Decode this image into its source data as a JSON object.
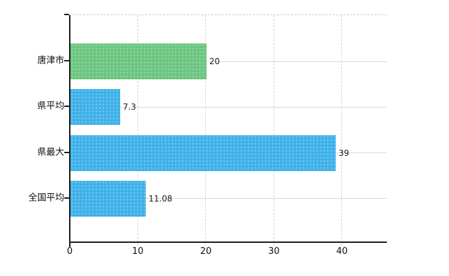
{
  "chart_data": {
    "type": "bar",
    "orientation": "horizontal",
    "title": "",
    "xlabel": "",
    "ylabel": "",
    "categories": [
      "唐津市",
      "県平均",
      "県最大",
      "全国平均"
    ],
    "values": [
      20,
      7.3,
      39,
      11.08
    ],
    "value_labels": [
      "20",
      "7.3",
      "39",
      "11.08"
    ],
    "bar_colors": [
      "#6cc581",
      "#3fb1e9",
      "#3fb1e9",
      "#3fb1e9"
    ],
    "x_ticks": [
      0,
      10,
      20,
      30,
      40
    ],
    "x_tick_labels": [
      "0",
      "10",
      "20",
      "30",
      "40"
    ],
    "xlim": [
      0,
      46.7
    ],
    "grid": true,
    "legend": "none",
    "plot_border_top": "dashed",
    "colors": {
      "axis": "#1b1b1b",
      "grid_vertical": "#d5d2d8",
      "grid_horizontal": "#d6dad6",
      "background": "#ffffff",
      "text": "#101010"
    }
  }
}
